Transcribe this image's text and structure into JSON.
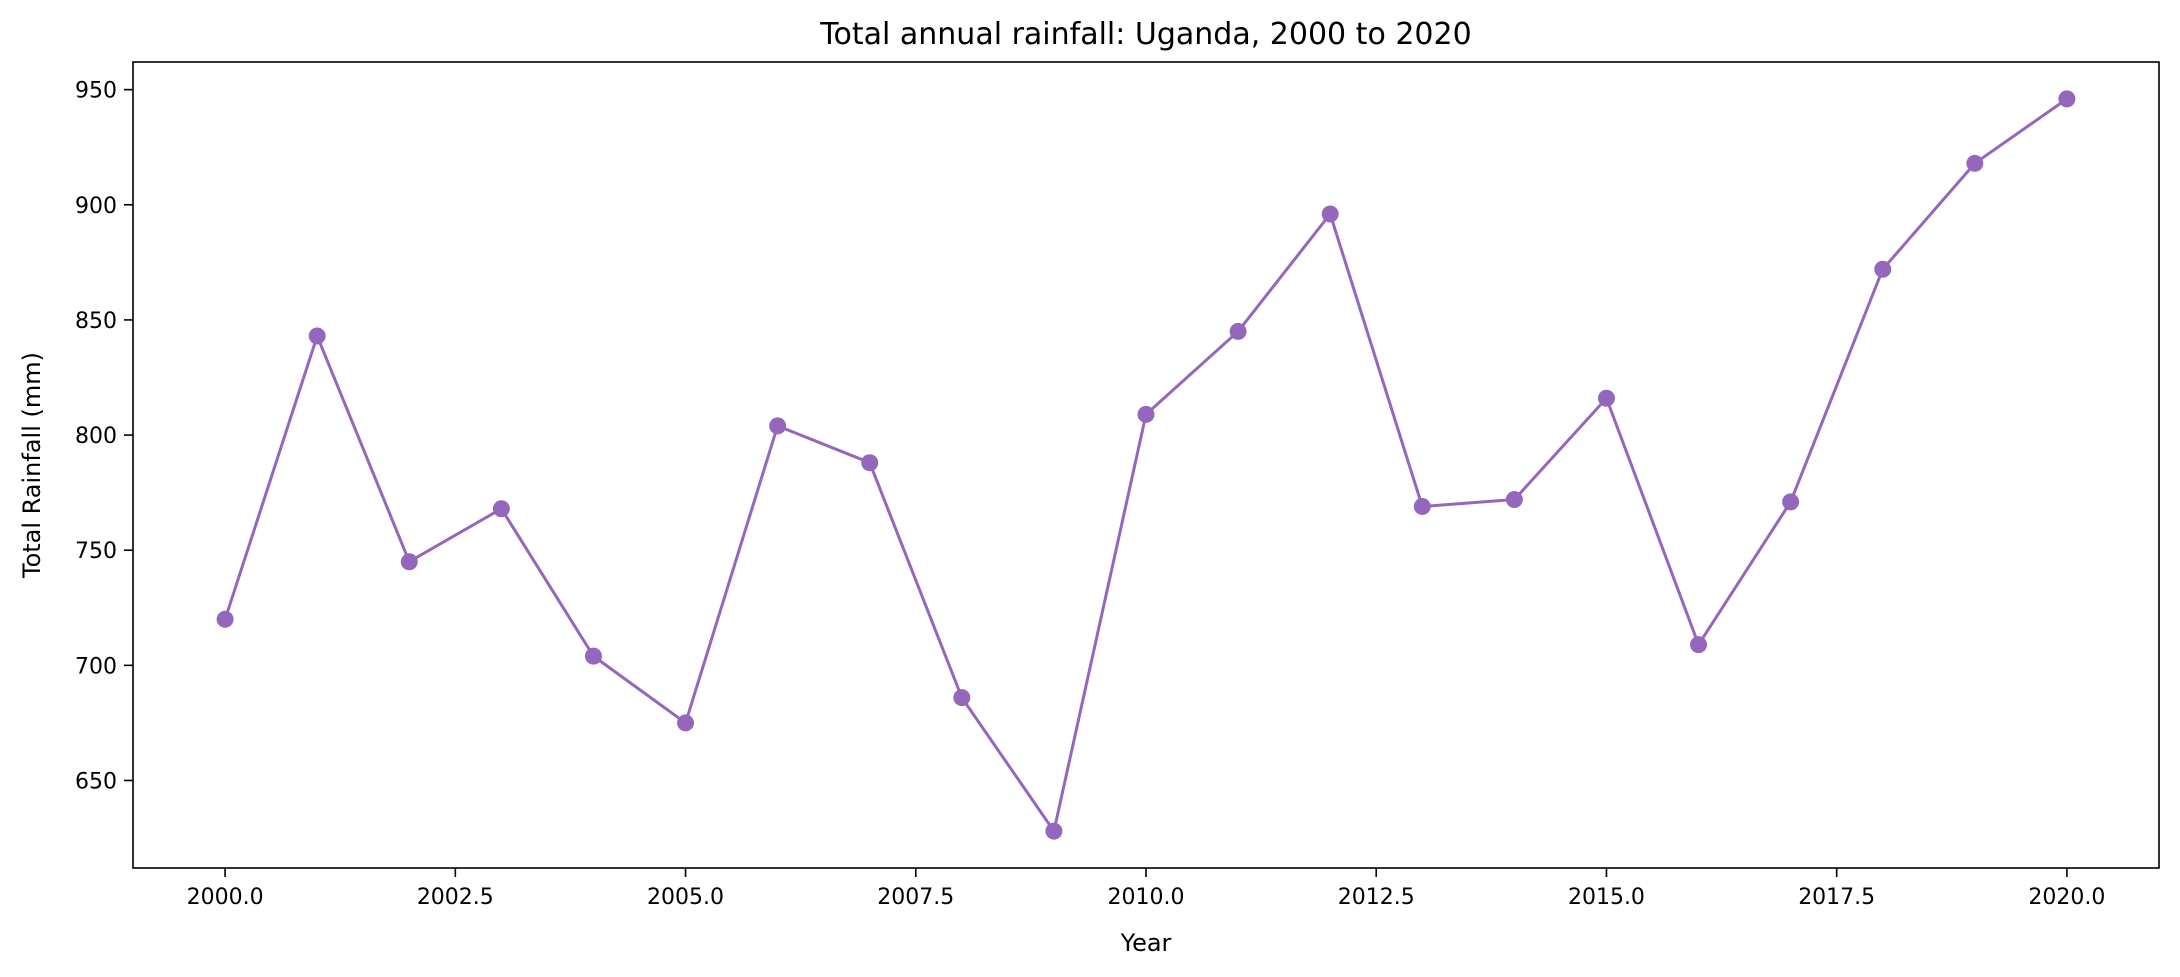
{
  "chart_data": {
    "type": "line",
    "title": "Total annual rainfall: Uganda, 2000 to 2020",
    "xlabel": "Year",
    "ylabel": "Total Rainfall (mm)",
    "xlim": [
      1999,
      2021
    ],
    "ylim": [
      612,
      962
    ],
    "xticks": [
      2000.0,
      2002.5,
      2005.0,
      2007.5,
      2010.0,
      2012.5,
      2015.0,
      2017.5,
      2020.0
    ],
    "xtick_labels": [
      "2000.0",
      "2002.5",
      "2005.0",
      "2007.5",
      "2010.0",
      "2012.5",
      "2015.0",
      "2017.5",
      "2020.0"
    ],
    "yticks": [
      650,
      700,
      750,
      800,
      850,
      900,
      950
    ],
    "ytick_labels": [
      "650",
      "700",
      "750",
      "800",
      "850",
      "900",
      "950"
    ],
    "grid": false,
    "legend": "none",
    "series": [
      {
        "color": "#9467bd",
        "marker": "circle",
        "x": [
          2000,
          2001,
          2002,
          2003,
          2004,
          2005,
          2006,
          2007,
          2008,
          2009,
          2010,
          2011,
          2012,
          2013,
          2014,
          2015,
          2016,
          2017,
          2018,
          2019,
          2020
        ],
        "values": [
          720,
          843,
          745,
          768,
          704,
          675,
          804,
          788,
          686,
          628,
          809,
          845,
          896,
          769,
          772,
          816,
          709,
          771,
          872,
          918,
          946
        ]
      }
    ]
  }
}
